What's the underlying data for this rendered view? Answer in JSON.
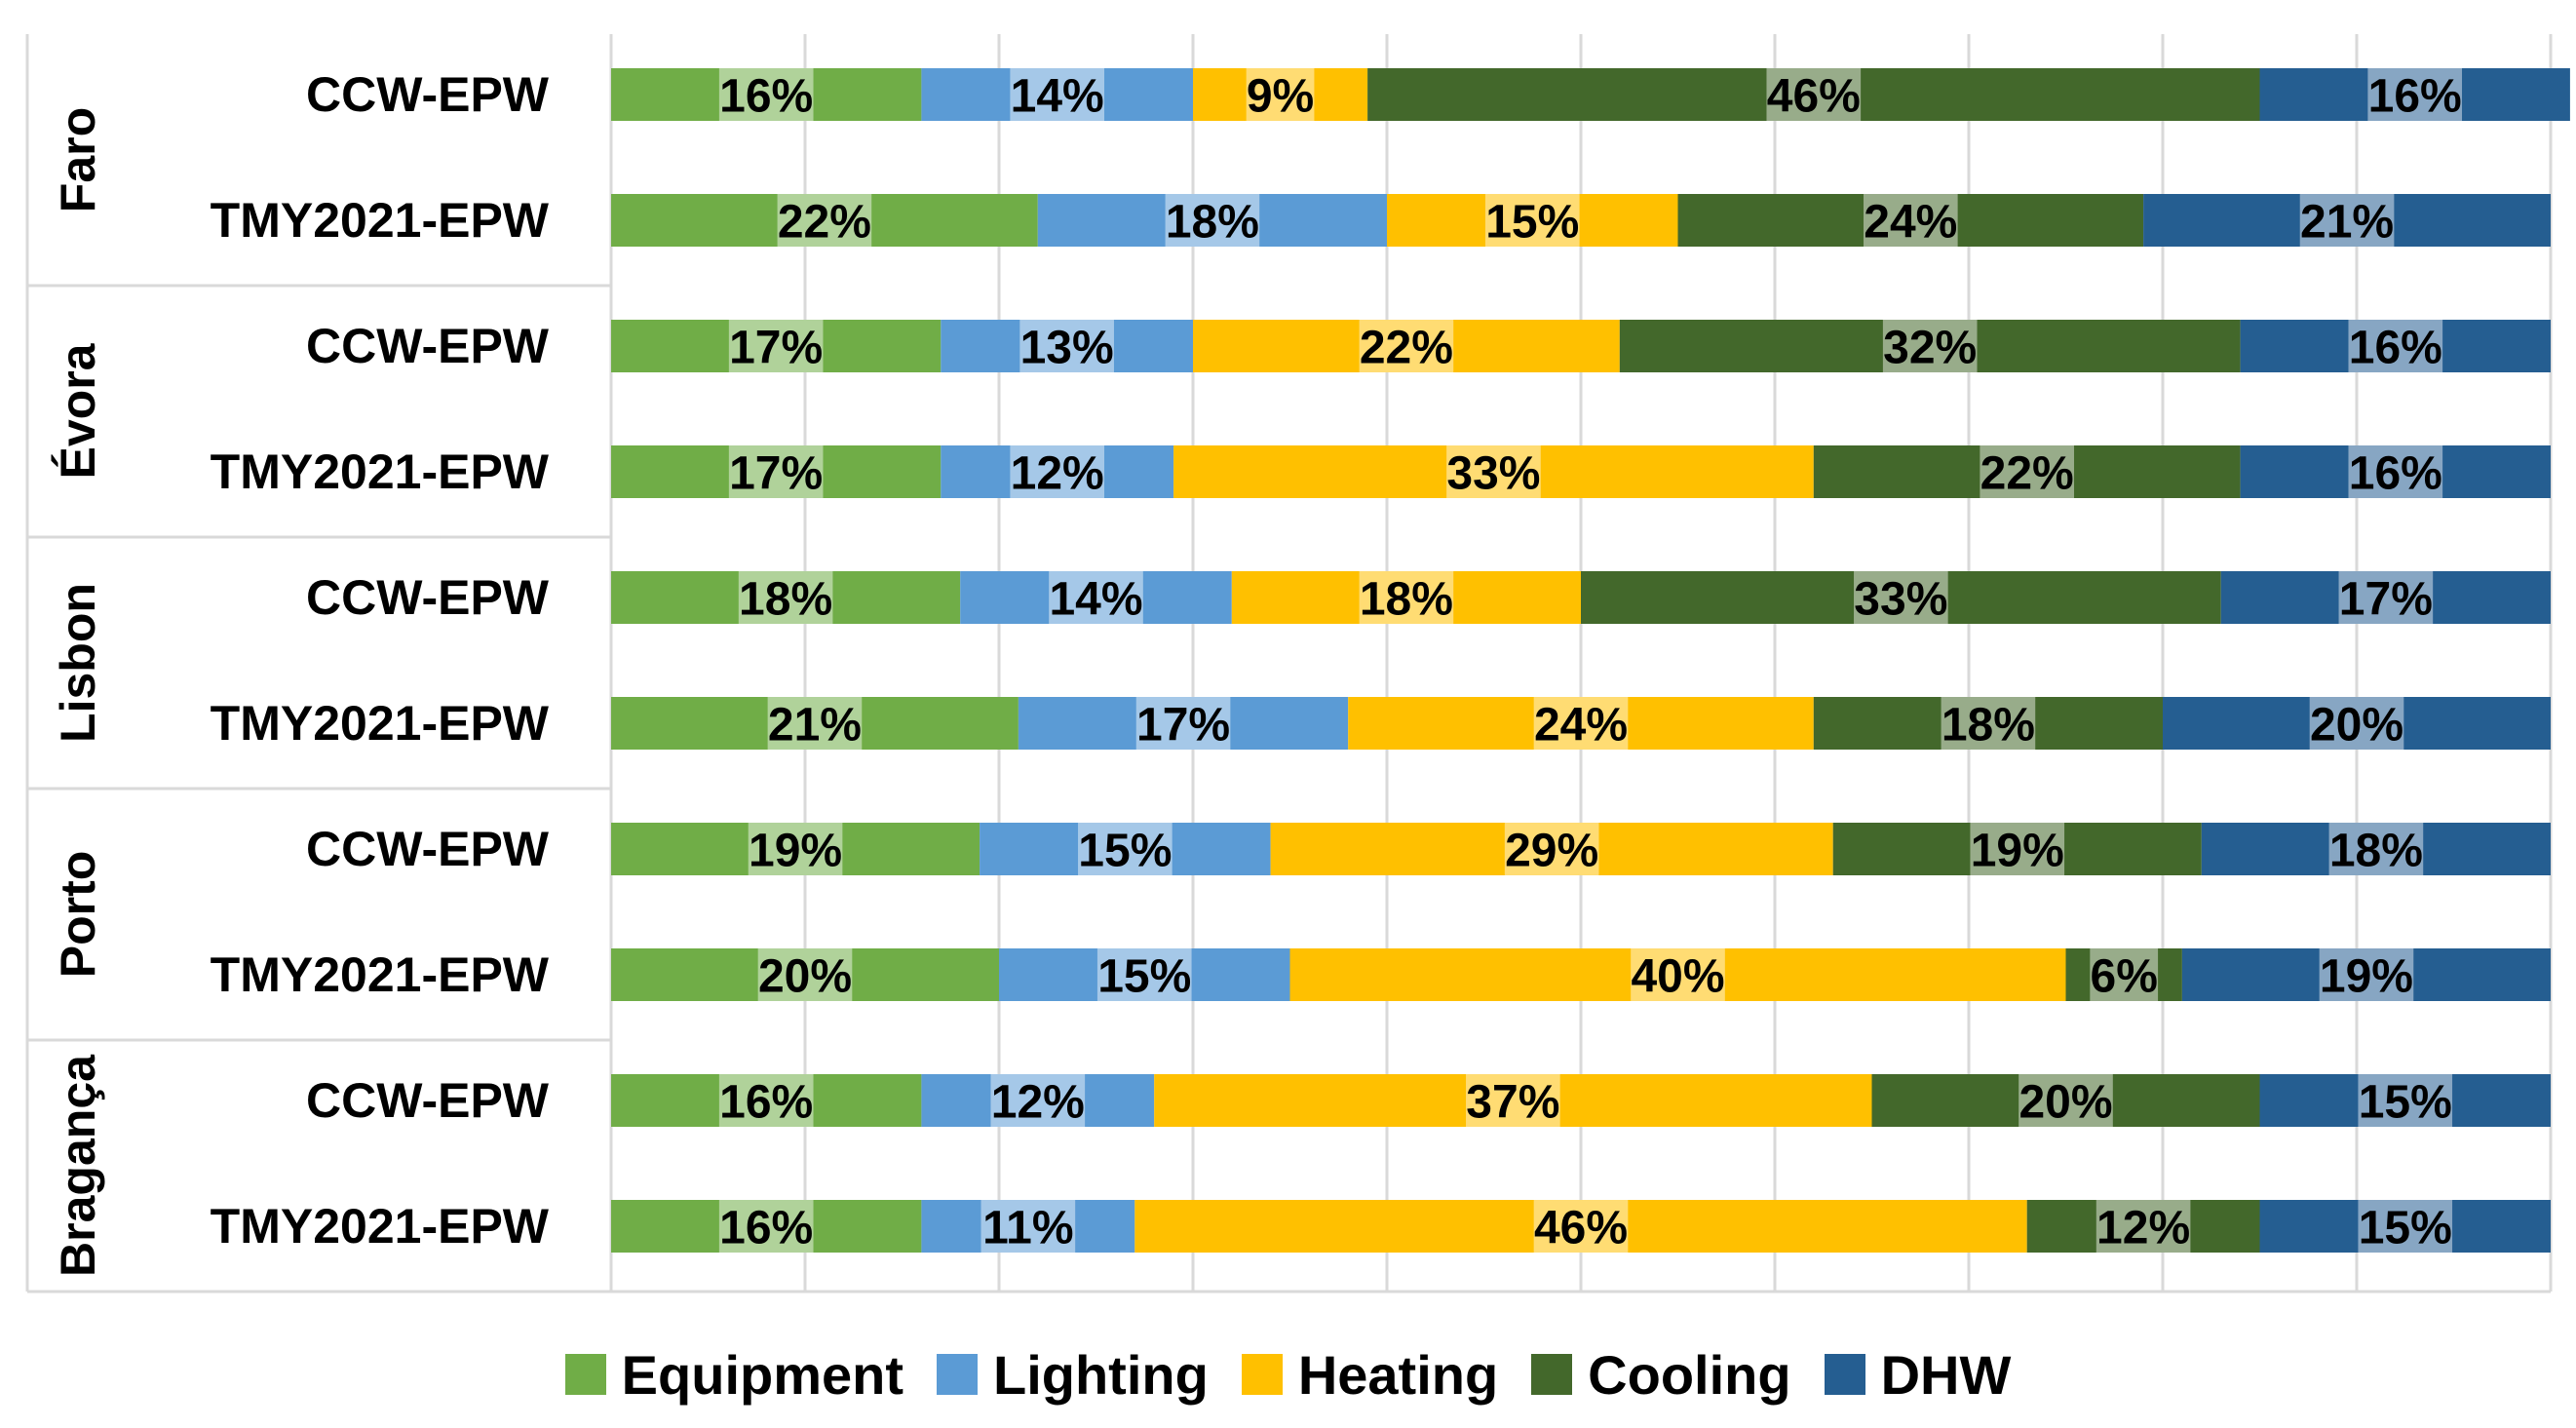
{
  "chart_data": {
    "type": "bar",
    "orientation": "horizontal",
    "stacked": "percent",
    "title": "",
    "xlabel": "",
    "ylabel": "",
    "xlim": [
      0,
      100
    ],
    "grid": true,
    "legend_position": "bottom",
    "groups": [
      {
        "city": "Faro",
        "rows": [
          {
            "label": "CCW-EPW",
            "values": [
              16,
              14,
              9,
              46,
              16
            ]
          },
          {
            "label": "TMY2021-EPW",
            "values": [
              22,
              18,
              15,
              24,
              21
            ]
          }
        ]
      },
      {
        "city": "Évora",
        "rows": [
          {
            "label": "CCW-EPW",
            "values": [
              17,
              13,
              22,
              32,
              16
            ]
          },
          {
            "label": "TMY2021-EPW",
            "values": [
              17,
              12,
              33,
              22,
              16
            ]
          }
        ]
      },
      {
        "city": "Lisbon",
        "rows": [
          {
            "label": "CCW-EPW",
            "values": [
              18,
              14,
              18,
              33,
              17
            ]
          },
          {
            "label": "TMY2021-EPW",
            "values": [
              21,
              17,
              24,
              18,
              20
            ]
          }
        ]
      },
      {
        "city": "Porto",
        "rows": [
          {
            "label": "CCW-EPW",
            "values": [
              19,
              15,
              29,
              19,
              18
            ]
          },
          {
            "label": "TMY2021-EPW",
            "values": [
              20,
              15,
              40,
              6,
              19
            ]
          }
        ]
      },
      {
        "city": "Bragança",
        "rows": [
          {
            "label": "CCW-EPW",
            "values": [
              16,
              12,
              37,
              20,
              15
            ]
          },
          {
            "label": "TMY2021-EPW",
            "values": [
              16,
              11,
              46,
              12,
              15
            ]
          }
        ]
      }
    ],
    "series": [
      {
        "name": "Equipment",
        "color": "#70ad47"
      },
      {
        "name": "Lighting",
        "color": "#5b9bd5"
      },
      {
        "name": "Heating",
        "color": "#ffc000"
      },
      {
        "name": "Cooling",
        "color": "#43682b"
      },
      {
        "name": "DHW",
        "color": "#255e91"
      }
    ]
  }
}
